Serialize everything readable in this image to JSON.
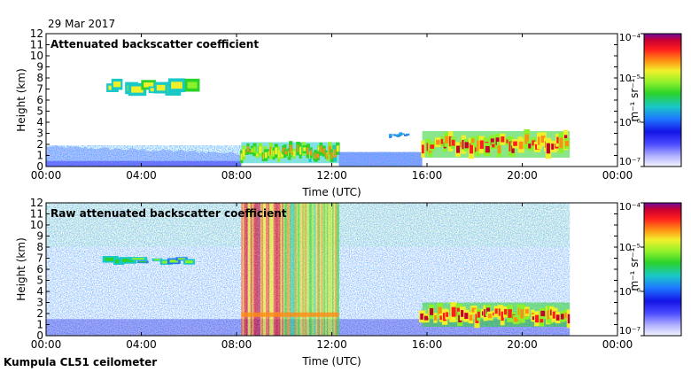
{
  "date": "29 Mar 2017",
  "footer": "Kumpula CL51 ceilometer",
  "colors": {
    "colormap": [
      "#f4f4ff",
      "#b0b0ff",
      "#4a4aff",
      "#1414e6",
      "#1e78ff",
      "#19c8c8",
      "#2ad22a",
      "#8cf02a",
      "#f0f02a",
      "#ff8c14",
      "#ff1e1e",
      "#c80032",
      "#6e0aa0"
    ]
  },
  "chart_data": [
    {
      "type": "heatmap",
      "title": "Attenuated backscatter coefficient",
      "xlabel": "Time (UTC)",
      "ylabel": "Height (km)",
      "xlim": [
        0,
        24
      ],
      "ylim": [
        0,
        12
      ],
      "x_ticks": [
        "00:00",
        "04:00",
        "08:00",
        "12:00",
        "16:00",
        "20:00",
        "00:00"
      ],
      "y_ticks": [
        "0",
        "1",
        "2",
        "3",
        "4",
        "5",
        "6",
        "7",
        "8",
        "9",
        "10",
        "11",
        "12"
      ],
      "data_extent_hours": [
        0,
        22
      ],
      "colorbar": {
        "scale": "log",
        "range": [
          1e-07,
          0.0001
        ],
        "label": "m⁻¹ sr⁻¹",
        "ticks": [
          "10⁻⁴",
          "10⁻⁵",
          "10⁻⁶",
          "10⁻⁷"
        ]
      },
      "features": [
        {
          "kind": "boundary_layer",
          "x": [
            0,
            8.2
          ],
          "top_km": [
            1.8,
            1.2
          ],
          "level": 0.3
        },
        {
          "kind": "cloud",
          "x": [
            8.2,
            12.3
          ],
          "y": [
            0.3,
            2.2
          ],
          "level": 0.75
        },
        {
          "kind": "aerosol",
          "x": [
            12.3,
            15.8
          ],
          "y": [
            0,
            1.3
          ],
          "level": 0.25
        },
        {
          "kind": "cloud",
          "x": [
            15.8,
            22
          ],
          "y": [
            0.8,
            3.2
          ],
          "level": 0.9
        },
        {
          "kind": "cloud_patch",
          "x": [
            2.6,
            6.2
          ],
          "y": [
            6.4,
            8.0
          ],
          "level": 0.65
        },
        {
          "kind": "cloud_patch",
          "x": [
            14.4,
            15.2
          ],
          "y": [
            2.6,
            3.1
          ],
          "level": 0.5
        }
      ]
    },
    {
      "type": "heatmap",
      "title": "Raw attenuated backscatter coefficient",
      "xlabel": "Time (UTC)",
      "ylabel": "Height (km)",
      "xlim": [
        0,
        24
      ],
      "ylim": [
        0,
        12
      ],
      "x_ticks": [
        "00:00",
        "04:00",
        "08:00",
        "12:00",
        "16:00",
        "20:00",
        "00:00"
      ],
      "y_ticks": [
        "0",
        "1",
        "2",
        "3",
        "4",
        "5",
        "6",
        "7",
        "8",
        "9",
        "10",
        "11",
        "12"
      ],
      "data_extent_hours": [
        0,
        22
      ],
      "colorbar": {
        "scale": "log",
        "range": [
          1e-07,
          0.0001
        ],
        "label": "m⁻¹ sr⁻¹",
        "ticks": [
          "10⁻⁴",
          "10⁻⁵",
          "10⁻⁶",
          "10⁻⁷"
        ]
      },
      "features": [
        {
          "kind": "noise_background",
          "x": [
            0,
            22
          ],
          "y": [
            0,
            12
          ],
          "level": 0.45
        },
        {
          "kind": "rain_band",
          "x": [
            8.2,
            10.0
          ],
          "y": [
            0,
            12
          ],
          "level": 0.8
        },
        {
          "kind": "rain_band",
          "x": [
            10.0,
            12.3
          ],
          "y": [
            0,
            12
          ],
          "level": 0.6
        },
        {
          "kind": "cloud",
          "x": [
            15.8,
            22
          ],
          "y": [
            0.8,
            3.0
          ],
          "level": 0.92
        },
        {
          "kind": "cloud_patch",
          "x": [
            2.6,
            6.2
          ],
          "y": [
            6.4,
            7.2
          ],
          "level": 0.6
        }
      ]
    }
  ]
}
